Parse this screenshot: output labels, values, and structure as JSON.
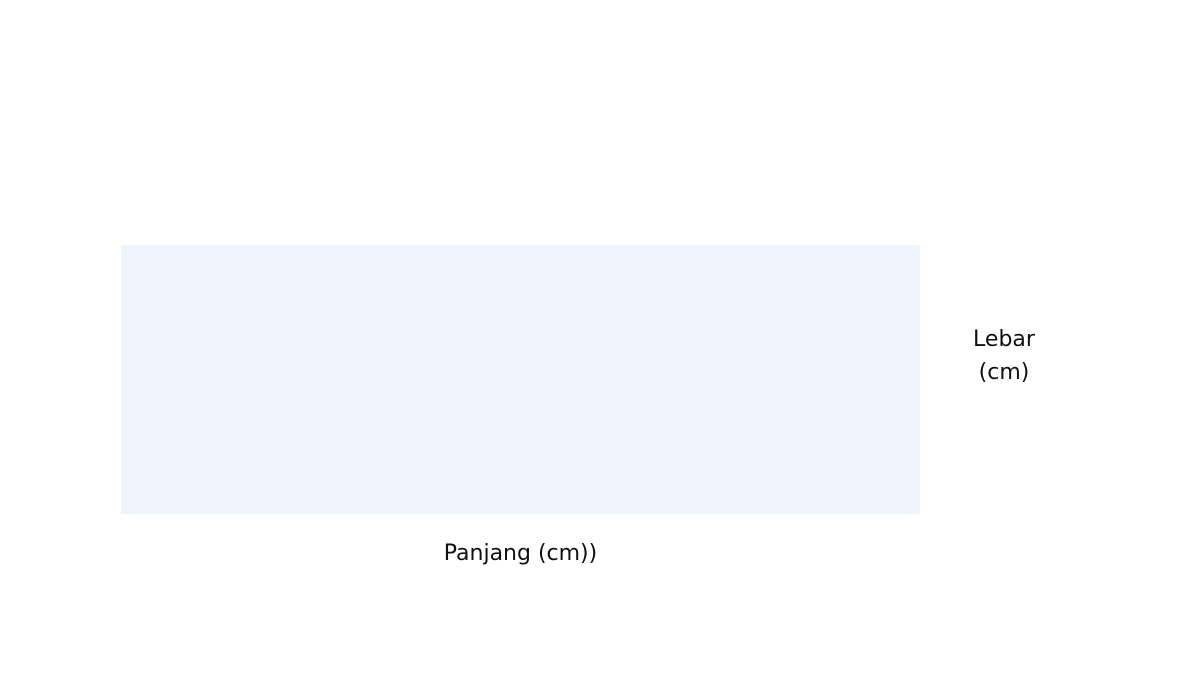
{
  "diagram": {
    "rectangle_fill": "#eef5fd",
    "length_label": "Panjang (cm))",
    "width_label": {
      "line1": "Lebar",
      "line2": "(cm)"
    }
  }
}
